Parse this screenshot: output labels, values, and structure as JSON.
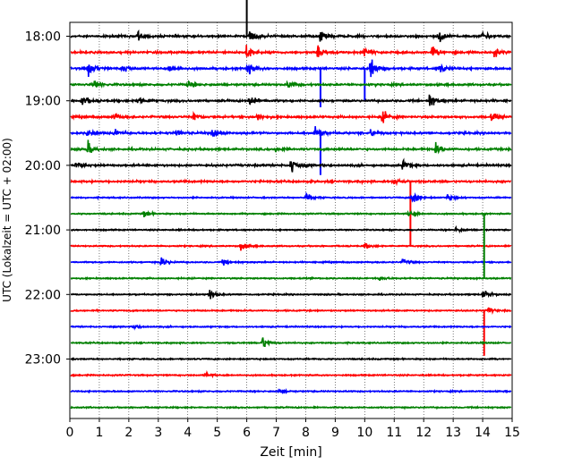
{
  "chart_data": {
    "type": "line",
    "title": "",
    "xlabel": "Zeit  [min]",
    "ylabel": "UTC (Lokalzeit = UTC + 02:00)",
    "xlim": [
      0,
      15
    ],
    "x_ticks": [
      "0",
      "1",
      "2",
      "3",
      "4",
      "5",
      "6",
      "7",
      "8",
      "9",
      "10",
      "11",
      "12",
      "13",
      "14",
      "15"
    ],
    "y_ticks": [
      "18:00",
      "19:00",
      "20:00",
      "21:00",
      "22:00",
      "23:00"
    ],
    "trace_start_times": [
      "18:00",
      "18:15",
      "18:30",
      "18:45",
      "19:00",
      "19:15",
      "19:30",
      "19:45",
      "20:00",
      "20:15",
      "20:30",
      "20:45",
      "21:00",
      "21:15",
      "21:30",
      "21:45",
      "22:00",
      "22:15",
      "22:30",
      "22:45",
      "23:00",
      "23:15",
      "23:30",
      "23:45"
    ],
    "colors": [
      "#000000",
      "#ff0000",
      "#0000ff",
      "#008000"
    ],
    "grid": "vertical dotted",
    "events": [
      {
        "trace": 0,
        "x": 2.3,
        "amp": 1.6
      },
      {
        "trace": 0,
        "x": 6.1,
        "amp": 2.6
      },
      {
        "trace": 0,
        "x": 8.5,
        "amp": 1.8
      },
      {
        "trace": 0,
        "x": 12.5,
        "amp": 2.2
      },
      {
        "trace": 0,
        "x": 14.0,
        "amp": 1.8
      },
      {
        "trace": 1,
        "x": 6.0,
        "amp": 2.8
      },
      {
        "trace": 1,
        "x": 8.4,
        "amp": 1.8
      },
      {
        "trace": 1,
        "x": 10.0,
        "amp": 1.8
      },
      {
        "trace": 1,
        "x": 12.3,
        "amp": 1.8
      },
      {
        "trace": 1,
        "x": 14.4,
        "amp": 1.5
      },
      {
        "trace": 2,
        "x": 0.6,
        "amp": 2.4
      },
      {
        "trace": 2,
        "x": 1.8,
        "amp": 1.8
      },
      {
        "trace": 2,
        "x": 3.4,
        "amp": 1.8
      },
      {
        "trace": 2,
        "x": 6.0,
        "amp": 2.4
      },
      {
        "trace": 2,
        "x": 10.2,
        "amp": 3.4
      },
      {
        "trace": 2,
        "x": 12.5,
        "amp": 2.0
      },
      {
        "trace": 3,
        "x": 0.8,
        "amp": 1.6
      },
      {
        "trace": 3,
        "x": 4.0,
        "amp": 1.2
      },
      {
        "trace": 3,
        "x": 7.4,
        "amp": 1.2
      },
      {
        "trace": 4,
        "x": 0.4,
        "amp": 1.6
      },
      {
        "trace": 4,
        "x": 2.3,
        "amp": 1.6
      },
      {
        "trace": 4,
        "x": 6.1,
        "amp": 2.2
      },
      {
        "trace": 4,
        "x": 12.2,
        "amp": 2.4
      },
      {
        "trace": 5,
        "x": 1.5,
        "amp": 1.2
      },
      {
        "trace": 5,
        "x": 4.2,
        "amp": 1.4
      },
      {
        "trace": 5,
        "x": 6.3,
        "amp": 1.4
      },
      {
        "trace": 5,
        "x": 10.6,
        "amp": 2.2
      },
      {
        "trace": 5,
        "x": 14.3,
        "amp": 1.6
      },
      {
        "trace": 6,
        "x": 0.6,
        "amp": 1.4
      },
      {
        "trace": 6,
        "x": 1.5,
        "amp": 1.6
      },
      {
        "trace": 6,
        "x": 3.6,
        "amp": 1.2
      },
      {
        "trace": 6,
        "x": 4.8,
        "amp": 1.8
      },
      {
        "trace": 6,
        "x": 8.3,
        "amp": 3.2
      },
      {
        "trace": 6,
        "x": 10.2,
        "amp": 1.2
      },
      {
        "trace": 7,
        "x": 0.6,
        "amp": 2.2
      },
      {
        "trace": 7,
        "x": 7.0,
        "amp": 1.2
      },
      {
        "trace": 7,
        "x": 12.4,
        "amp": 1.8
      },
      {
        "trace": 8,
        "x": 0.2,
        "amp": 1.6
      },
      {
        "trace": 8,
        "x": 7.5,
        "amp": 3.0
      },
      {
        "trace": 8,
        "x": 11.3,
        "amp": 2.0
      },
      {
        "trace": 9,
        "x": 11.0,
        "amp": 1.2
      },
      {
        "trace": 10,
        "x": 8.0,
        "amp": 1.8
      },
      {
        "trace": 10,
        "x": 11.6,
        "amp": 3.0
      },
      {
        "trace": 10,
        "x": 12.8,
        "amp": 1.2
      },
      {
        "trace": 11,
        "x": 2.5,
        "amp": 1.0
      },
      {
        "trace": 11,
        "x": 11.5,
        "amp": 1.2
      },
      {
        "trace": 12,
        "x": 13.1,
        "amp": 1.0
      },
      {
        "trace": 13,
        "x": 5.8,
        "amp": 1.6
      },
      {
        "trace": 13,
        "x": 10.0,
        "amp": 1.0
      },
      {
        "trace": 14,
        "x": 3.1,
        "amp": 1.6
      },
      {
        "trace": 14,
        "x": 5.2,
        "amp": 1.4
      },
      {
        "trace": 14,
        "x": 11.3,
        "amp": 1.0
      },
      {
        "trace": 15,
        "x": 10.5,
        "amp": 0.8
      },
      {
        "trace": 16,
        "x": 4.7,
        "amp": 1.6
      },
      {
        "trace": 16,
        "x": 14.0,
        "amp": 2.0
      },
      {
        "trace": 17,
        "x": 14.2,
        "amp": 1.0
      },
      {
        "trace": 18,
        "x": 2.2,
        "amp": 1.0
      },
      {
        "trace": 19,
        "x": 6.5,
        "amp": 2.4
      },
      {
        "trace": 21,
        "x": 4.6,
        "amp": 0.8
      },
      {
        "trace": 22,
        "x": 7.1,
        "amp": 0.8
      }
    ],
    "spikes": [
      {
        "trace": 0,
        "x": 6.0,
        "dir": -1,
        "len": 2.5
      },
      {
        "trace": 2,
        "x": 8.5,
        "dir": 1,
        "len": 2.4
      },
      {
        "trace": 2,
        "x": 10.0,
        "dir": 1,
        "len": 2.0
      },
      {
        "trace": 6,
        "x": 8.5,
        "dir": 1,
        "len": 2.6
      },
      {
        "trace": 9,
        "x": 11.55,
        "dir": 1,
        "len": 4.0
      },
      {
        "trace": 15,
        "x": 14.05,
        "dir": -1,
        "len": 4.0
      },
      {
        "trace": 17,
        "x": 14.05,
        "dir": 1,
        "len": 2.8
      }
    ]
  }
}
